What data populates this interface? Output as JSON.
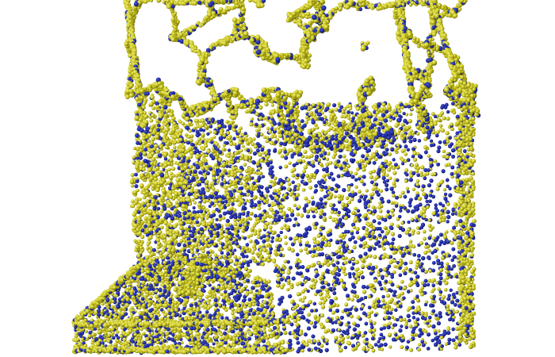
{
  "scene": {
    "subject": "atomistic-foam-and-block",
    "colors": {
      "background": "#ffffff",
      "atom_primary": "#c8c41a",
      "atom_highlight": "#f2f07a",
      "atom_shadow": "#6f6c0e",
      "atom_secondary": "#1f2aa0",
      "atom_secondary_dark": "#0c1460"
    }
  }
}
